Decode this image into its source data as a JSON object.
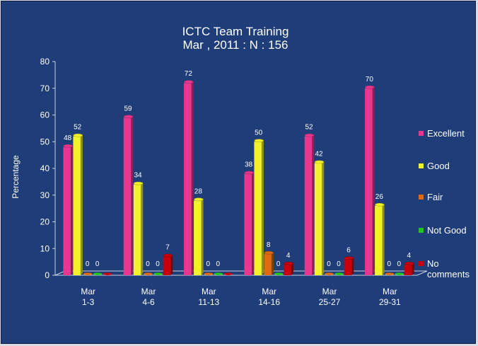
{
  "chart_data": {
    "type": "bar",
    "title": "ICTC Team Training",
    "subtitle": "Mar , 2011 : N : 156",
    "ylabel": "Percentage",
    "xlabel": "",
    "ylim": [
      0,
      80
    ],
    "yticks": [
      0,
      10,
      20,
      30,
      40,
      50,
      60,
      70,
      80
    ],
    "grid": false,
    "legend_position": "right",
    "categories": [
      [
        "Mar",
        "1-3"
      ],
      [
        "Mar",
        "4-6"
      ],
      [
        "Mar",
        "11-13"
      ],
      [
        "Mar",
        "14-16"
      ],
      [
        "Mar",
        "25-27"
      ],
      [
        "Mar",
        "29-31"
      ]
    ],
    "series": [
      {
        "name": "Excellent",
        "color": "#e8378f",
        "values": [
          48,
          59,
          72,
          38,
          52,
          70
        ]
      },
      {
        "name": "Good",
        "color": "#f2f22a",
        "values": [
          52,
          34,
          28,
          50,
          42,
          26
        ]
      },
      {
        "name": "Fair",
        "color": "#e06a10",
        "values": [
          0,
          0,
          0,
          8,
          0,
          0
        ]
      },
      {
        "name": "Not Good",
        "color": "#22c41e",
        "values": [
          0,
          0,
          0,
          0,
          0,
          0
        ]
      },
      {
        "name": "No comments",
        "color": "#c8000c",
        "values": [
          0,
          7,
          0,
          4,
          6,
          4
        ]
      }
    ],
    "legend_labels": [
      [
        "Excellent"
      ],
      [
        "Good"
      ],
      [
        "Fair"
      ],
      [
        "Not Good"
      ],
      [
        "No",
        "comments"
      ]
    ],
    "visible_labels": [
      [
        true,
        true,
        true,
        true,
        false
      ],
      [
        true,
        true,
        true,
        true,
        true
      ],
      [
        true,
        true,
        true,
        true,
        false
      ],
      [
        true,
        true,
        true,
        true,
        true
      ],
      [
        true,
        true,
        true,
        true,
        true
      ],
      [
        true,
        true,
        true,
        true,
        true
      ]
    ]
  }
}
